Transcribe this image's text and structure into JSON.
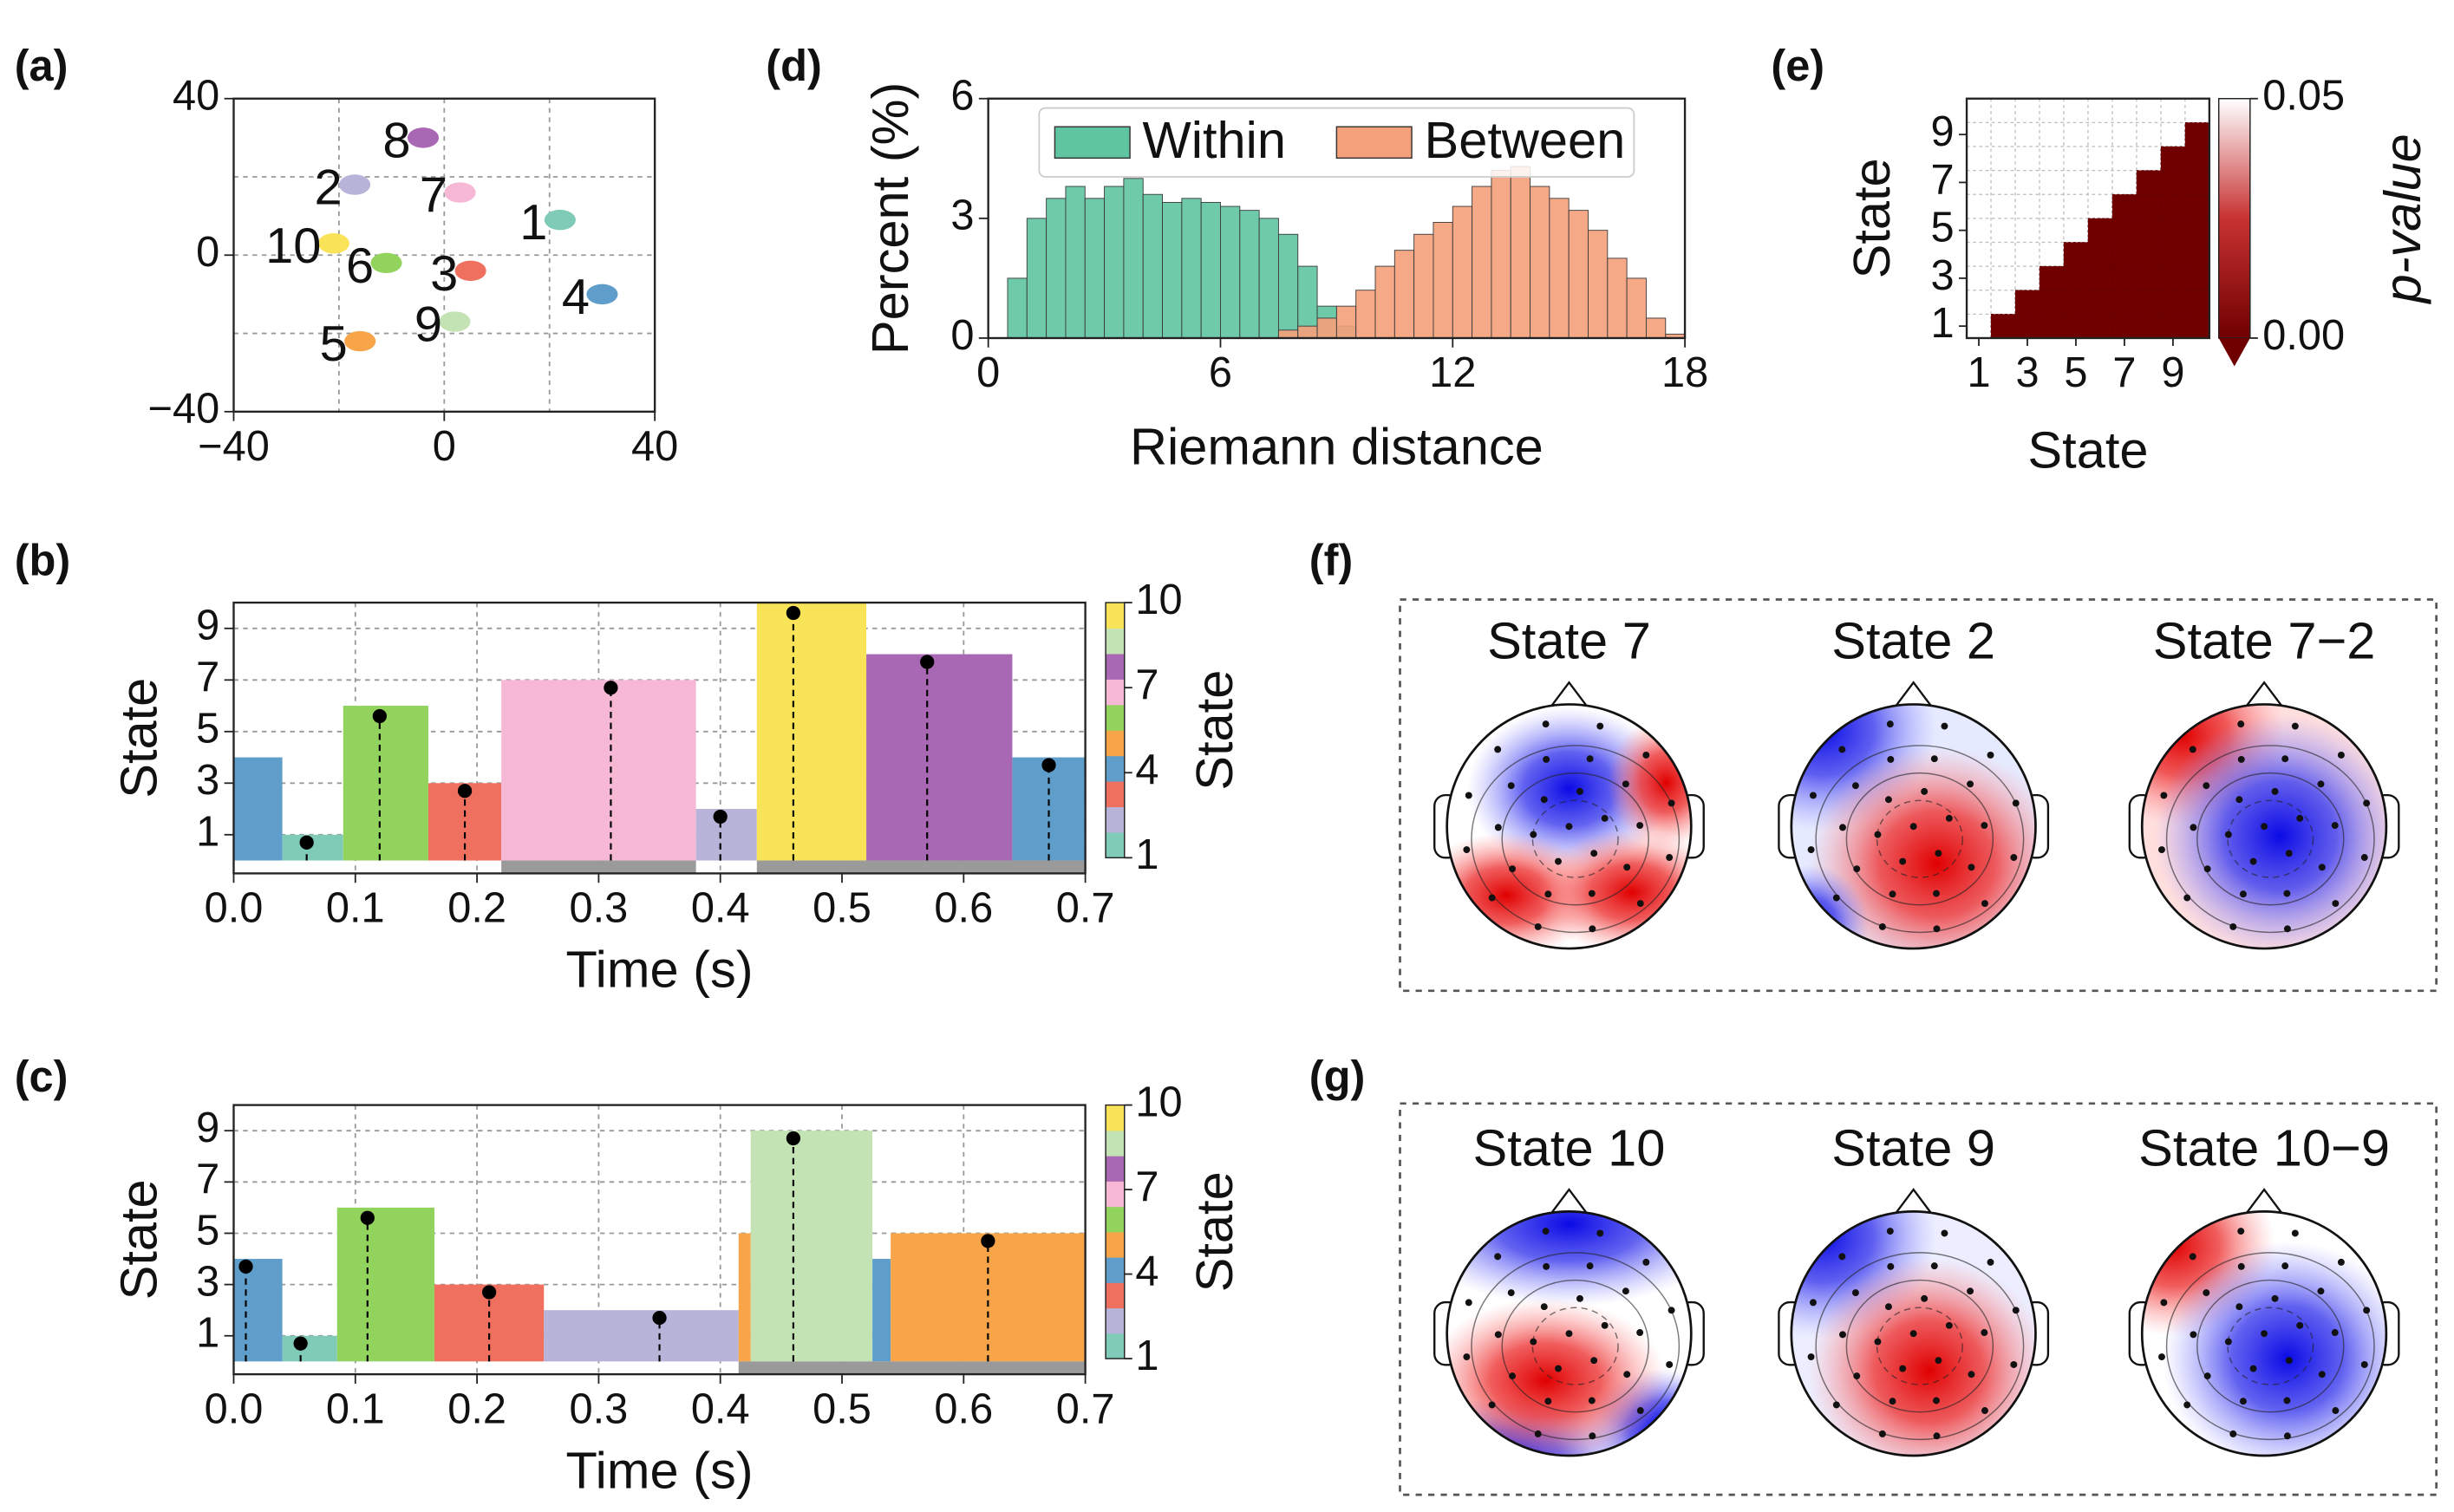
{
  "chart_data": [
    {
      "type": "scatter",
      "panel": "(a)",
      "x": [
        22,
        -17,
        5,
        30,
        -16,
        -11,
        3,
        -4,
        2,
        -21
      ],
      "y": [
        9,
        18,
        -4,
        -10,
        -22,
        -2,
        16,
        30,
        -17,
        3
      ],
      "labels": [
        "1",
        "2",
        "3",
        "4",
        "5",
        "6",
        "7",
        "8",
        "9",
        "10"
      ],
      "colors": [
        "#7fcbb8",
        "#b7b3d9",
        "#f0705f",
        "#5f9ecb",
        "#f8a448",
        "#92d35e",
        "#f7b8d6",
        "#a868b3",
        "#c4e3b4",
        "#f9e358"
      ],
      "xlim": [
        -40,
        40
      ],
      "ylim": [
        -40,
        40
      ],
      "xticks": [
        {
          "value": -40,
          "label": "−40"
        },
        0,
        40
      ],
      "yticks": [
        {
          "value": -40,
          "label": "−40"
        },
        0,
        40
      ],
      "xgrid": [
        -20,
        0,
        20
      ],
      "ygrid": [
        -20,
        0,
        20
      ]
    },
    {
      "type": "histogram",
      "panel": "(d)",
      "xlabel": "Riemann distance",
      "ylabel": "Percent (%)",
      "bins": [
        0,
        0.5,
        1,
        1.5,
        2,
        2.5,
        3,
        3.5,
        4,
        4.5,
        5,
        5.5,
        6,
        6.5,
        7,
        7.5,
        8,
        8.5,
        9,
        9.5,
        10,
        10.5,
        11,
        11.5,
        12,
        12.5,
        13,
        13.5,
        14,
        14.5,
        15,
        15.5,
        16,
        16.5,
        17,
        17.5,
        18
      ],
      "series": [
        {
          "name": "Within",
          "color": "#5fc4a0",
          "values": [
            0,
            1.5,
            3,
            3.5,
            3.8,
            3.5,
            3.8,
            4,
            3.6,
            3.4,
            3.5,
            3.4,
            3.3,
            3.2,
            3,
            2.6,
            1.8,
            0.8,
            0.3,
            0,
            0,
            0,
            0,
            0,
            0,
            0,
            0,
            0,
            0,
            0,
            0,
            0,
            0,
            0,
            0,
            0
          ]
        },
        {
          "name": "Between",
          "color": "#f4a07a",
          "values": [
            0,
            0,
            0,
            0,
            0,
            0,
            0,
            0,
            0,
            0,
            0,
            0,
            0,
            0,
            0,
            0.2,
            0.3,
            0.5,
            0.8,
            1.2,
            1.8,
            2.2,
            2.6,
            2.9,
            3.3,
            3.8,
            4.2,
            4.3,
            3.8,
            3.5,
            3.2,
            2.7,
            2,
            1.5,
            0.5,
            0.1
          ]
        }
      ],
      "xlim": [
        0,
        18
      ],
      "ylim": [
        0,
        6
      ],
      "xticks": [
        0,
        6,
        12,
        18
      ],
      "yticks": [
        0,
        3,
        6
      ],
      "legend": "upper center"
    },
    {
      "type": "heatmap",
      "panel": "(e)",
      "xlabel": "State",
      "ylabel": "State",
      "z": [
        [
          null,
          0,
          0,
          0,
          0,
          0,
          0,
          0,
          0,
          0
        ],
        [
          null,
          null,
          0,
          0,
          0,
          0,
          0,
          0,
          0,
          0
        ],
        [
          null,
          null,
          null,
          0,
          0,
          0,
          0,
          0,
          0,
          0
        ],
        [
          null,
          null,
          null,
          null,
          0,
          0,
          0,
          0,
          0,
          0
        ],
        [
          null,
          null,
          null,
          null,
          null,
          0,
          0,
          0,
          0,
          0
        ],
        [
          null,
          null,
          null,
          null,
          null,
          null,
          0,
          0,
          0,
          0
        ],
        [
          null,
          null,
          null,
          null,
          null,
          null,
          null,
          0,
          0,
          0
        ],
        [
          null,
          null,
          null,
          null,
          null,
          null,
          null,
          null,
          0,
          0
        ],
        [
          null,
          null,
          null,
          null,
          null,
          null,
          null,
          null,
          null,
          0
        ],
        [
          null,
          null,
          null,
          null,
          null,
          null,
          null,
          null,
          null,
          null
        ]
      ],
      "xticks": [
        1,
        3,
        5,
        7,
        9
      ],
      "yticks": [
        1,
        3,
        5,
        7,
        9
      ],
      "colorbar": {
        "label": "p-value",
        "lim": [
          0,
          0.05
        ],
        "ticks": [
          {
            "value": 0,
            "label": "0.00"
          },
          0.05
        ],
        "colormap": [
          "#700000",
          "#c83232",
          "#ffffff"
        ]
      }
    },
    {
      "type": "timeline",
      "panel": "(b)",
      "xlabel": "Time (s)",
      "ylabel": "State",
      "segments": {
        "start": [
          0,
          0.04,
          0.09,
          0.16,
          0.22,
          0.38,
          0.43,
          0.52,
          0.64
        ],
        "end": [
          0.04,
          0.09,
          0.16,
          0.22,
          0.38,
          0.43,
          0.52,
          0.64,
          0.7
        ],
        "state": [
          4,
          1,
          6,
          3,
          7,
          2,
          10,
          8,
          4
        ]
      },
      "points": {
        "x": [
          0.06,
          0.12,
          0.19,
          0.31,
          0.4,
          0.46,
          0.57,
          0.67
        ],
        "y": [
          0.7,
          5.6,
          2.7,
          6.7,
          1.7,
          9.6,
          7.7,
          3.7
        ]
      },
      "highlights": {
        "start": [
          0.22,
          0.43
        ],
        "end": [
          0.38,
          0.7
        ]
      },
      "xlim": [
        0,
        0.7
      ],
      "ylim": [
        -0.5,
        10
      ],
      "xticks": [
        {
          "value": 0,
          "label": "0.0"
        },
        0.1,
        0.2,
        0.3,
        0.4,
        0.5,
        0.6,
        0.7
      ],
      "yticks": [
        1,
        3,
        5,
        7,
        9
      ],
      "grid": true,
      "colorbar": {
        "label": "State",
        "lim": [
          1,
          10
        ],
        "ticks": [
          1,
          4,
          7,
          10
        ]
      },
      "state_colors": [
        "#7fcbb8",
        "#b7b3d9",
        "#f0705f",
        "#5f9ecb",
        "#f8a448",
        "#92d35e",
        "#f7b8d6",
        "#a868b3",
        "#c4e3b4",
        "#f9e358"
      ]
    },
    {
      "type": "timeline",
      "panel": "(c)",
      "xlabel": "Time (s)",
      "ylabel": "State",
      "segments": {
        "start": [
          0,
          0.04,
          0.085,
          0.165,
          0.255,
          0.415,
          0.425,
          0.525,
          0.54
        ],
        "end": [
          0.04,
          0.085,
          0.165,
          0.255,
          0.415,
          0.425,
          0.525,
          0.54,
          0.7
        ],
        "state": [
          4,
          1,
          6,
          3,
          2,
          5,
          9,
          4,
          5
        ]
      },
      "points": {
        "x": [
          0.01,
          0.055,
          0.11,
          0.21,
          0.35,
          0.46,
          0.62
        ],
        "y": [
          3.7,
          0.7,
          5.6,
          2.7,
          1.7,
          8.7,
          4.7
        ]
      },
      "highlights": {
        "start": [
          0.415
        ],
        "end": [
          0.7
        ]
      },
      "xlim": [
        0,
        0.7
      ],
      "ylim": [
        -0.5,
        10
      ],
      "xticks": [
        {
          "value": 0,
          "label": "0.0"
        },
        0.1,
        0.2,
        0.3,
        0.4,
        0.5,
        0.6,
        0.7
      ],
      "yticks": [
        1,
        3,
        5,
        7,
        9
      ],
      "grid": true,
      "colorbar": {
        "label": "State",
        "lim": [
          1,
          10
        ],
        "ticks": [
          1,
          4,
          7,
          10
        ]
      },
      "state_colors": [
        "#7fcbb8",
        "#b7b3d9",
        "#f0705f",
        "#5f9ecb",
        "#f8a448",
        "#92d35e",
        "#f7b8d6",
        "#a868b3",
        "#c4e3b4",
        "#f9e358"
      ]
    },
    {
      "type": "topomap",
      "panel": "(f)",
      "titles": [
        "State 7",
        "State 2",
        "State 7−2"
      ]
    },
    {
      "type": "topomap",
      "panel": "(g)",
      "titles": [
        "State 10",
        "State 9",
        "State 10−9"
      ]
    }
  ]
}
